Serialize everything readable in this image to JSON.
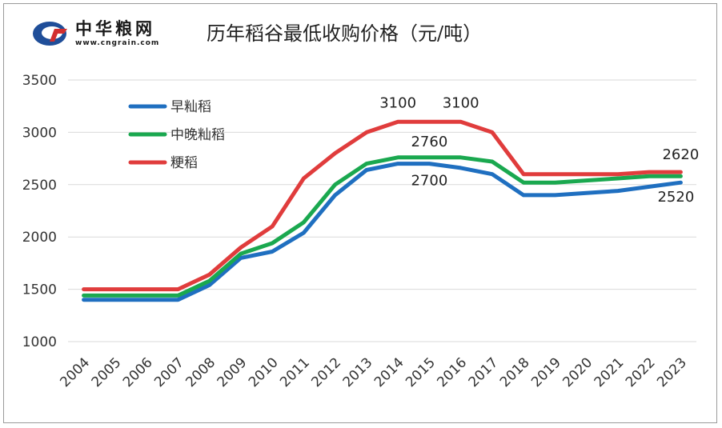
{
  "logo": {
    "name": "中华粮网",
    "url": "www.cngrain.com",
    "colors": {
      "blue": "#1f4e99",
      "red": "#d22f2f"
    }
  },
  "chart_data": {
    "type": "line",
    "title": "历年稻谷最低收购价格（元/吨）",
    "xlabel": "",
    "ylabel": "",
    "ylim": [
      1000,
      3500
    ],
    "yticks": [
      1000,
      1500,
      2000,
      2500,
      3000,
      3500
    ],
    "grid": true,
    "legend_position": "top-left",
    "x": [
      "2004",
      "2005",
      "2006",
      "2007",
      "2008",
      "2009",
      "2010",
      "2011",
      "2012",
      "2013",
      "2014",
      "2015",
      "2016",
      "2017",
      "2018",
      "2019",
      "2020",
      "2021",
      "2022",
      "2023"
    ],
    "series": [
      {
        "name": "早籼稻",
        "color": "#1f6fc0",
        "values": [
          1400,
          1400,
          1400,
          1400,
          1540,
          1800,
          1860,
          2040,
          2400,
          2640,
          2700,
          2700,
          2660,
          2600,
          2400,
          2400,
          2420,
          2440,
          2480,
          2520
        ]
      },
      {
        "name": "中晚籼稻",
        "color": "#1aa84f",
        "values": [
          1440,
          1440,
          1440,
          1440,
          1580,
          1840,
          1940,
          2140,
          2500,
          2700,
          2760,
          2760,
          2760,
          2720,
          2520,
          2520,
          2540,
          2560,
          2580,
          2580
        ]
      },
      {
        "name": "粳稻",
        "color": "#e03c3c",
        "values": [
          1500,
          1500,
          1500,
          1500,
          1640,
          1900,
          2100,
          2560,
          2800,
          3000,
          3100,
          3100,
          3100,
          3000,
          2600,
          2600,
          2600,
          2600,
          2620,
          2620
        ]
      }
    ],
    "annotations": [
      {
        "text": "3100",
        "x": "2014",
        "value": 3100
      },
      {
        "text": "3100",
        "x": "2016",
        "value": 3100
      },
      {
        "text": "2760",
        "x": "2015",
        "value": 2760
      },
      {
        "text": "2700",
        "x": "2015",
        "value": 2700
      },
      {
        "text": "2620",
        "x": "2023",
        "value": 2620
      },
      {
        "text": "2520",
        "x": "2023",
        "value": 2520
      }
    ]
  }
}
